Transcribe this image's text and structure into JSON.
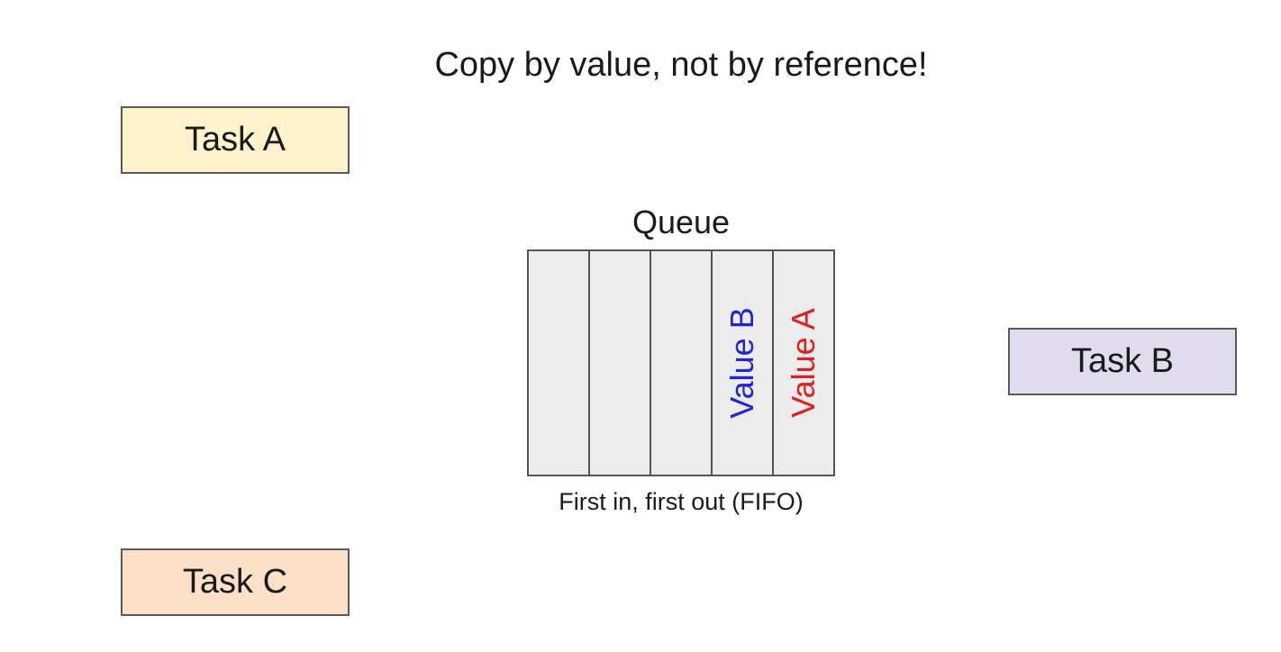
{
  "title": "Copy by value, not by reference!",
  "tasks": {
    "a": {
      "label": "Task A",
      "fill": "#fff2cc"
    },
    "b": {
      "label": "Task B",
      "fill": "#e0dced"
    },
    "c": {
      "label": "Task C",
      "fill": "#fde0c8"
    }
  },
  "queue": {
    "label": "Queue",
    "caption": "First in, first out (FIFO)",
    "slots": [
      {
        "text": "",
        "color": "#000000"
      },
      {
        "text": "",
        "color": "#000000"
      },
      {
        "text": "",
        "color": "#000000"
      },
      {
        "text": "Value B",
        "color": "#2222dd"
      },
      {
        "text": "Value A",
        "color": "#e02020"
      }
    ]
  }
}
